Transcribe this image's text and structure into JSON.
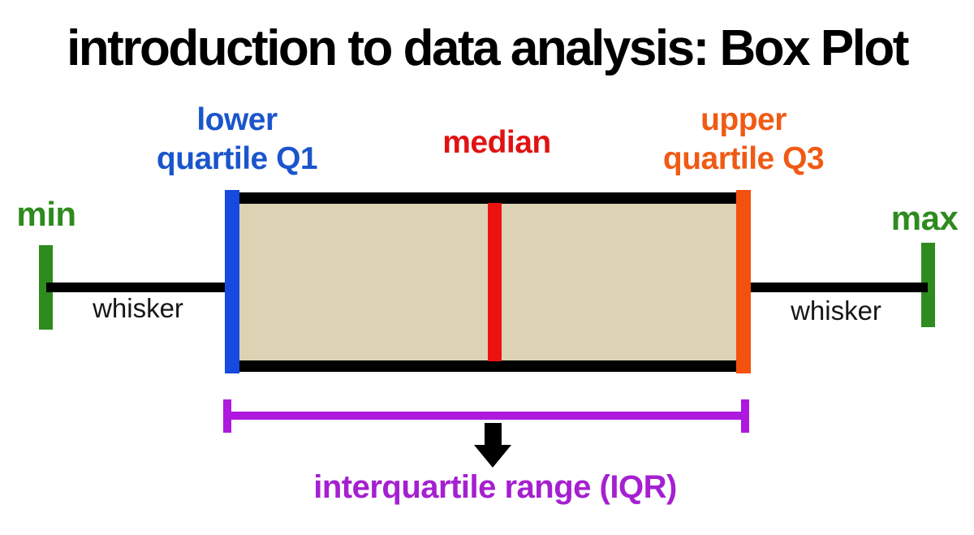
{
  "title": "introduction to data analysis: Box Plot",
  "boxplot": {
    "labels": {
      "lower_quartile_line1": "lower",
      "lower_quartile_line2": "quartile Q1",
      "median": "median",
      "upper_quartile_line1": "upper",
      "upper_quartile_line2": "quartile Q3",
      "min": "min",
      "max": "max",
      "whisker_left": "whisker",
      "whisker_right": "whisker",
      "iqr": "interquartile range (IQR)"
    },
    "colors": {
      "q1_bar_blue": "#1549e0",
      "q1_text_blue": "#1b55cc",
      "median_bar_red": "#ee1111",
      "median_text_red": "#e11212",
      "q3_bar_orange": "#f4510e",
      "q3_text_orange": "#f05a14",
      "min_max_green": "#2e8b1e",
      "iqr_bracket_purple": "#ae19e0",
      "iqr_text_purple": "#a520d1",
      "box_fill_tan": "#ddd2b3",
      "line_black": "#000000"
    }
  }
}
